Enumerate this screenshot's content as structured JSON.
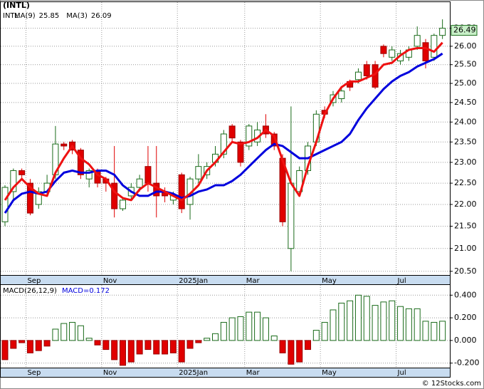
{
  "chart_data": {
    "type": "candlestick",
    "title": "(INTL)",
    "symbol": "INTL",
    "log_scale": true,
    "grid": true,
    "categories": [
      null,
      null,
      null,
      "Sep",
      null,
      null,
      null,
      null,
      null,
      null,
      null,
      null,
      "Nov",
      null,
      null,
      null,
      null,
      null,
      null,
      null,
      null,
      "2025Jan",
      null,
      null,
      null,
      null,
      null,
      null,
      null,
      "Mar",
      null,
      null,
      null,
      null,
      null,
      null,
      null,
      null,
      "May",
      null,
      null,
      null,
      null,
      null,
      null,
      null,
      null,
      "Jul",
      null,
      null,
      null,
      null,
      null
    ],
    "open": [
      21.6,
      22.3,
      22.8,
      22.5,
      22.0,
      22.3,
      22.7,
      23.45,
      23.5,
      23.3,
      22.6,
      22.8,
      22.6,
      22.5,
      21.9,
      22.2,
      22.4,
      22.9,
      22.5,
      22.3,
      22.1,
      22.7,
      22.0,
      22.6,
      22.7,
      23.0,
      23.2,
      23.9,
      23.5,
      23.4,
      23.5,
      23.9,
      23.7,
      23.1,
      21.0,
      22.3,
      22.8,
      23.5,
      24.3,
      24.5,
      24.6,
      25.05,
      25.1,
      25.5,
      25.5,
      26.0,
      25.7,
      25.6,
      25.7,
      26.0,
      26.1,
      25.7,
      26.3
    ],
    "high": [
      22.45,
      22.85,
      22.85,
      22.6,
      22.4,
      22.7,
      23.9,
      23.5,
      23.55,
      23.35,
      22.85,
      22.85,
      22.65,
      23.4,
      22.15,
      22.5,
      22.7,
      23.4,
      23.4,
      22.4,
      22.3,
      22.75,
      22.65,
      23.2,
      23.0,
      23.4,
      23.8,
      23.95,
      23.55,
      23.95,
      24.0,
      24.2,
      23.75,
      23.2,
      24.4,
      22.9,
      23.5,
      24.3,
      24.4,
      24.8,
      24.9,
      25.1,
      25.4,
      25.6,
      25.6,
      26.05,
      26.0,
      25.9,
      26.0,
      26.55,
      26.2,
      26.35,
      26.75
    ],
    "low": [
      21.5,
      22.1,
      22.6,
      21.75,
      21.9,
      22.2,
      22.6,
      23.3,
      23.2,
      22.6,
      22.4,
      22.4,
      22.3,
      21.7,
      21.85,
      22.1,
      22.3,
      22.3,
      21.7,
      22.05,
      22.0,
      21.8,
      21.65,
      22.5,
      22.6,
      22.9,
      23.1,
      23.5,
      22.9,
      23.3,
      23.4,
      23.6,
      23.3,
      21.5,
      20.5,
      22.2,
      22.7,
      23.4,
      24.1,
      24.4,
      24.5,
      24.8,
      25.0,
      25.1,
      24.85,
      25.7,
      25.6,
      25.5,
      25.6,
      25.9,
      25.4,
      25.6,
      26.2
    ],
    "close": [
      22.4,
      22.8,
      22.7,
      21.8,
      22.3,
      22.5,
      23.45,
      23.4,
      23.3,
      22.7,
      22.8,
      22.5,
      22.5,
      21.9,
      22.1,
      22.4,
      22.6,
      22.5,
      22.2,
      22.2,
      22.2,
      21.9,
      22.6,
      22.9,
      22.9,
      23.2,
      23.7,
      23.6,
      23.0,
      23.9,
      23.8,
      23.7,
      23.4,
      21.6,
      22.5,
      22.8,
      23.4,
      24.2,
      24.2,
      24.7,
      24.8,
      24.9,
      25.3,
      25.2,
      24.9,
      25.8,
      25.9,
      25.8,
      25.9,
      26.3,
      25.6,
      26.3,
      26.5
    ],
    "up_color": "#1a6b1a",
    "down_color": "#e00000",
    "last_price_label": "26.49",
    "last_price_color": "#c8f0c8",
    "series": [
      {
        "name": "MA(9)",
        "label_value": "25.85",
        "color": "#0000dd",
        "values": [
          21.8,
          22.1,
          22.25,
          22.3,
          22.25,
          22.3,
          22.55,
          22.75,
          22.8,
          22.75,
          22.75,
          22.8,
          22.8,
          22.7,
          22.45,
          22.3,
          22.2,
          22.2,
          22.3,
          22.3,
          22.25,
          22.15,
          22.2,
          22.3,
          22.35,
          22.45,
          22.45,
          22.55,
          22.7,
          22.9,
          23.1,
          23.3,
          23.45,
          23.4,
          23.25,
          23.1,
          23.1,
          23.2,
          23.3,
          23.4,
          23.5,
          23.7,
          24.05,
          24.35,
          24.6,
          24.85,
          25.05,
          25.2,
          25.3,
          25.45,
          25.55,
          25.65,
          25.8
        ]
      },
      {
        "name": "MA(3)",
        "label_value": "26.09",
        "color": "#ee1111",
        "values": [
          22.1,
          22.4,
          22.6,
          22.4,
          22.25,
          22.2,
          22.75,
          23.1,
          23.4,
          23.1,
          22.95,
          22.7,
          22.6,
          22.3,
          22.15,
          22.1,
          22.35,
          22.5,
          22.4,
          22.3,
          22.2,
          22.1,
          22.25,
          22.45,
          22.8,
          23.0,
          23.25,
          23.5,
          23.45,
          23.5,
          23.6,
          23.8,
          23.65,
          23.05,
          22.5,
          22.2,
          22.9,
          23.5,
          24.2,
          24.6,
          24.9,
          25.05,
          25.05,
          25.15,
          25.25,
          25.5,
          25.55,
          25.75,
          25.9,
          25.95,
          25.95,
          25.85,
          26.1
        ]
      }
    ],
    "ylim": [
      20.42,
      27.24
    ],
    "yticks": [
      {
        "value": 20.5,
        "label": "20.50"
      },
      {
        "value": 21,
        "label": "21.00"
      },
      {
        "value": 21.5,
        "label": "21.50"
      },
      {
        "value": 22,
        "label": "22.00"
      },
      {
        "value": 22.5,
        "label": "22.50"
      },
      {
        "value": 23,
        "label": "23.00"
      },
      {
        "value": 23.5,
        "label": "23.50"
      },
      {
        "value": 24,
        "label": "24.00"
      },
      {
        "value": 24.5,
        "label": "24.50"
      },
      {
        "value": 25,
        "label": "25.00"
      },
      {
        "value": 25.5,
        "label": "25.50"
      },
      {
        "value": 26,
        "label": "26.00"
      },
      {
        "value": 26.5,
        "label": "26.50"
      }
    ],
    "macd": {
      "title": "MACD(26,12,9)",
      "reading": "MACD=0.172",
      "values": [
        -0.17,
        -0.07,
        -0.02,
        -0.11,
        -0.09,
        -0.05,
        0.1,
        0.15,
        0.16,
        0.13,
        0.02,
        -0.04,
        -0.08,
        -0.17,
        -0.22,
        -0.19,
        -0.12,
        -0.08,
        -0.12,
        -0.12,
        -0.11,
        -0.19,
        -0.07,
        -0.02,
        0.02,
        0.06,
        0.16,
        0.2,
        0.21,
        0.25,
        0.25,
        0.2,
        0.04,
        -0.11,
        -0.21,
        -0.19,
        -0.08,
        0.09,
        0.16,
        0.27,
        0.33,
        0.35,
        0.4,
        0.39,
        0.31,
        0.34,
        0.35,
        0.3,
        0.28,
        0.28,
        0.17,
        0.16,
        0.17
      ],
      "ylim": [
        -0.24,
        0.49
      ],
      "yticks": [
        {
          "value": -0.2,
          "label": "-0.200"
        },
        {
          "value": 0,
          "label": "0.000"
        },
        {
          "value": 0.2,
          "label": "0.200"
        },
        {
          "value": 0.4,
          "label": "0.400"
        }
      ]
    },
    "footer": "© 12Stocks.com"
  }
}
